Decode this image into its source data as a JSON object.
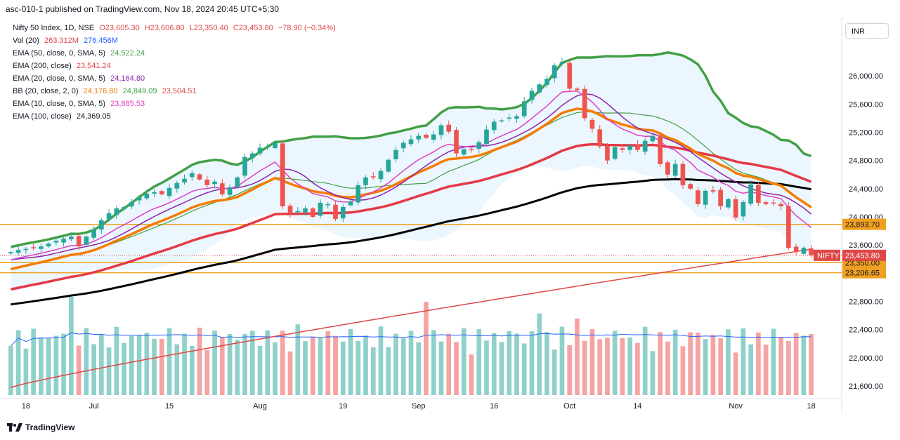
{
  "header": {
    "text": "asc-010-1 published on TradingView.com, Nov 18, 2024 20:45 UTC+5:30"
  },
  "legend": {
    "main": {
      "name": "Nifty 50 Index, 1D, NSE",
      "o": "O23,605.30",
      "h": "H23,606.80",
      "l": "L23,350.40",
      "c": "C23,453.80",
      "chg": "−78.90 (−0.34%)"
    },
    "vol": {
      "name": "Vol (20)",
      "v1": "263.312M",
      "v2": "276.456M"
    },
    "ema50": {
      "name": "EMA (50, close, 0, SMA, 5)",
      "v": "24,522.24"
    },
    "ema200": {
      "name": "EMA (200, close)",
      "v": "23,541.24"
    },
    "ema20": {
      "name": "EMA (20, close, 0, SMA, 5)",
      "v": "24,164.80"
    },
    "bb": {
      "name": "BB (20, close, 2, 0)",
      "v1": "24,176.80",
      "v2": "24,849.09",
      "v3": "23,504.51"
    },
    "ema10": {
      "name": "EMA (10, close, 0, SMA, 5)",
      "v": "23,885.53"
    },
    "ema100": {
      "name": "EMA (100, close)",
      "v": "24,369.05"
    }
  },
  "currency": "INR",
  "footer": {
    "brand": "TradingView"
  },
  "colors": {
    "up": "#26a69a",
    "down": "#ef5350",
    "ema50": "#4caf50",
    "ema200": "#e04848",
    "ema20": "#f57c00",
    "bb": "#43a047",
    "bbfill": "#e3f2fd",
    "ema10": "#e040c0",
    "ema100": "#000000",
    "hline": "#f0a020",
    "smaPurple": "#8e24aa"
  },
  "chart_data": {
    "type": "candlestick",
    "title": "Nifty 50 Index, 1D, NSE",
    "ylim": [
      21500,
      26600
    ],
    "y_ticks": [
      21600,
      22000,
      22400,
      22800,
      23200,
      23600,
      24000,
      24400,
      24800,
      25200,
      25600,
      26000
    ],
    "y_tick_labels": [
      "21,600.00",
      "22,000.00",
      "22,400.00",
      "22,800.00",
      "23,200.00",
      "23,600.00",
      "24,000.00",
      "24,400.00",
      "24,800.00",
      "25,200.00",
      "25,600.00",
      "26,000.00"
    ],
    "x_tick_labels": [
      {
        "label": "18",
        "idx": 2
      },
      {
        "label": "Jul",
        "idx": 11
      },
      {
        "label": "15",
        "idx": 21
      },
      {
        "label": "Aug",
        "idx": 33
      },
      {
        "label": "19",
        "idx": 44
      },
      {
        "label": "Sep",
        "idx": 54
      },
      {
        "label": "16",
        "idx": 64
      },
      {
        "label": "Oct",
        "idx": 74
      },
      {
        "label": "14",
        "idx": 83
      },
      {
        "label": "Nov",
        "idx": 96
      },
      {
        "label": "18",
        "idx": 106
      }
    ],
    "horizontal_levels": [
      {
        "value": 23893.7,
        "label": "23,893.70"
      },
      {
        "value": 23350.0,
        "label": "23,350.00"
      },
      {
        "value": 23206.65,
        "label": "23,206.65"
      }
    ],
    "last_price": {
      "label": "NIFTY",
      "value": 23453.8,
      "text": "23,453.80"
    },
    "closes": [
      23500,
      23530,
      23545,
      23560,
      23580,
      23620,
      23660,
      23690,
      23720,
      23580,
      23720,
      23820,
      23950,
      24050,
      24120,
      24140,
      24210,
      24280,
      24330,
      24350,
      24320,
      24410,
      24480,
      24540,
      24620,
      24530,
      24450,
      24500,
      24320,
      24420,
      24560,
      24850,
      24900,
      24980,
      25000,
      25050,
      24150,
      24050,
      24080,
      24120,
      24000,
      24200,
      24180,
      23970,
      24140,
      24220,
      24450,
      24560,
      24560,
      24650,
      24810,
      24950,
      25050,
      25100,
      25150,
      25120,
      25170,
      25300,
      25210,
      24900,
      24960,
      24950,
      25060,
      25240,
      25350,
      25370,
      25410,
      25430,
      25640,
      25790,
      25880,
      25960,
      26150,
      26200,
      25820,
      25800,
      25400,
      25250,
      25000,
      24800,
      24990,
      24950,
      25010,
      24950,
      25080,
      25150,
      24750,
      24600,
      24750,
      24450,
      24400,
      24180,
      24370,
      24360,
      24150,
      24250,
      23990,
      24210,
      24460,
      24200,
      24180,
      24200,
      24150,
      23560,
      23500,
      23560,
      23453.8
    ],
    "ema200_values": [
      21580,
      23541.24
    ],
    "volumes_note": "Volume histogram shown in lower panel",
    "volume_series": {
      "v1": "263.312M",
      "v2": "276.456M"
    }
  }
}
